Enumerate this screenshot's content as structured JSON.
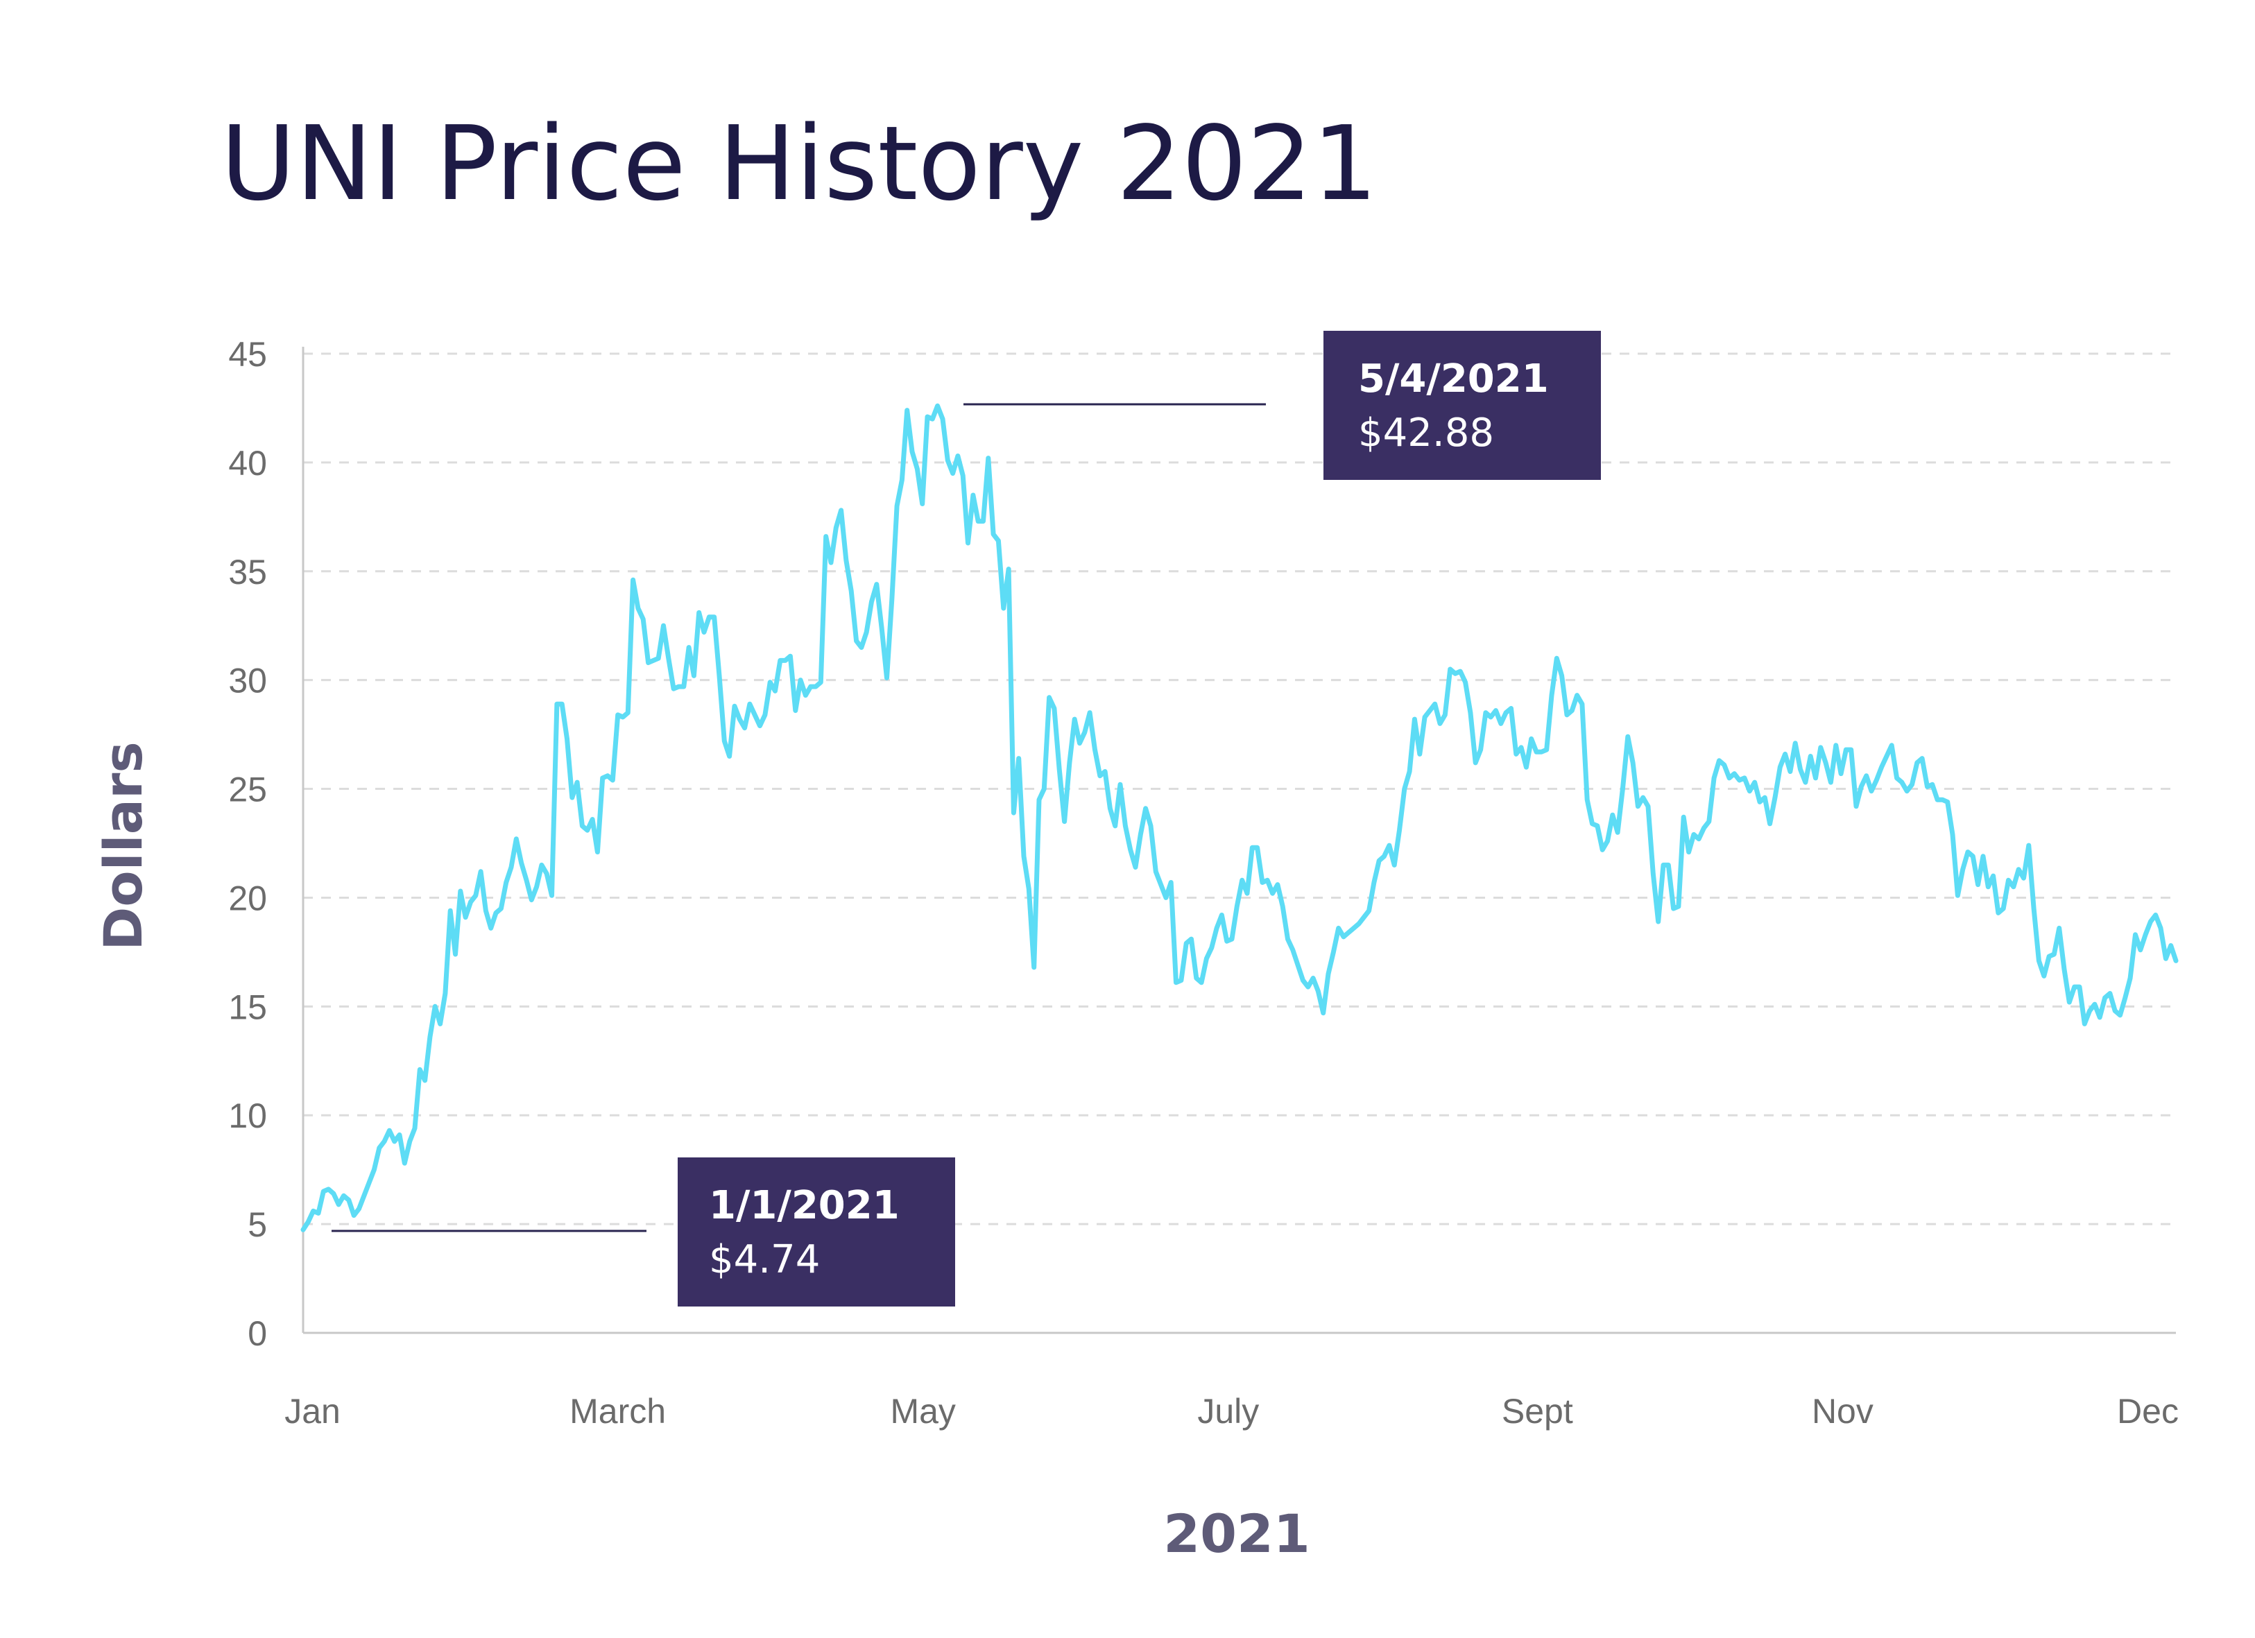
{
  "chart_data": {
    "type": "line",
    "title": "UNI Price History 2021",
    "xlabel": "2021",
    "ylabel": "Dollars",
    "ylim": [
      0,
      45
    ],
    "yticks": [
      0,
      5,
      10,
      15,
      20,
      25,
      30,
      35,
      40,
      45
    ],
    "xticks": [
      "Jan",
      "March",
      "May",
      "July",
      "Sept",
      "Nov",
      "Dec"
    ],
    "grid": true,
    "colors": {
      "line": "#5ddcf5",
      "annotation_bg": "#3a2f63",
      "leader": "#2a2550",
      "grid": "#dcdcdc",
      "axis": "#c8c8c8"
    },
    "annotations": [
      {
        "date": "1/1/2021",
        "value": "$4.74"
      },
      {
        "date": "5/4/2021",
        "value": "$42.88"
      }
    ],
    "series": [
      {
        "values": [
          4.74,
          5.1,
          5.6,
          5.5,
          6.5,
          6.6,
          6.4,
          5.9,
          6.3,
          6.1,
          5.4,
          5.7,
          6.3,
          6.9,
          7.5,
          8.5,
          8.8,
          9.3,
          8.8,
          9.1,
          7.8,
          8.8,
          9.4,
          12.1,
          11.6,
          13.6,
          15.0,
          14.2,
          15.6,
          19.4,
          17.4,
          20.3,
          19.1,
          19.8,
          20.1,
          21.2,
          19.4,
          18.6,
          19.3,
          19.5,
          20.7,
          21.4,
          22.7,
          21.6,
          20.8,
          19.9,
          20.5,
          21.5,
          21.1,
          20.1,
          28.9,
          28.9,
          27.3,
          24.6,
          25.3,
          23.3,
          23.1,
          23.6,
          22.1,
          25.5,
          25.6,
          25.4,
          28.4,
          28.3,
          28.5,
          34.6,
          33.3,
          32.8,
          30.8,
          30.9,
          31.0,
          32.5,
          31.0,
          29.6,
          29.7,
          29.7,
          31.5,
          30.2,
          33.1,
          32.2,
          32.9,
          32.9,
          30.2,
          27.2,
          26.5,
          28.8,
          28.2,
          27.8,
          28.9,
          28.4,
          27.9,
          28.4,
          29.9,
          29.5,
          30.9,
          30.9,
          31.1,
          28.6,
          30.0,
          29.3,
          29.7,
          29.7,
          29.9,
          36.6,
          35.4,
          37.0,
          37.8,
          35.5,
          34.1,
          31.8,
          31.5,
          32.2,
          33.6,
          34.4,
          32.4,
          30.1,
          33.7,
          38.0,
          39.2,
          42.4,
          40.5,
          39.7,
          38.1,
          42.1,
          42.0,
          42.6,
          42.0,
          40.1,
          39.5,
          40.3,
          39.4,
          36.3,
          38.5,
          37.3,
          37.3,
          40.2,
          36.7,
          36.4,
          33.3,
          35.1,
          23.9,
          26.4,
          21.9,
          20.4,
          16.8,
          24.5,
          25.0,
          29.2,
          28.7,
          25.9,
          23.5,
          26.2,
          28.2,
          27.1,
          27.6,
          28.5,
          26.8,
          25.6,
          25.8,
          24.1,
          23.3,
          25.2,
          23.3,
          22.2,
          21.4,
          22.9,
          24.1,
          23.3,
          21.2,
          20.6,
          20.0,
          20.7,
          16.1,
          16.2,
          17.9,
          18.1,
          16.3,
          16.1,
          17.2,
          17.7,
          18.6,
          19.2,
          18.0,
          18.1,
          19.6,
          20.8,
          20.2,
          22.3,
          22.3,
          20.7,
          20.8,
          20.2,
          20.6,
          19.6,
          18.1,
          17.6,
          16.9,
          16.2,
          15.9,
          16.3,
          15.7,
          14.7,
          16.5,
          17.5,
          18.6,
          18.2,
          18.4,
          18.6,
          18.8,
          19.1,
          19.4,
          20.7,
          21.7,
          21.9,
          22.4,
          21.5,
          23.1,
          25.0,
          25.8,
          28.2,
          26.6,
          28.3,
          28.6,
          28.9,
          28.0,
          28.4,
          30.5,
          30.3,
          30.4,
          29.9,
          28.5,
          26.2,
          26.8,
          28.5,
          28.3,
          28.6,
          28.0,
          28.5,
          28.7,
          26.6,
          26.9,
          26.0,
          27.3,
          26.7,
          26.7,
          26.8,
          29.3,
          31.0,
          30.2,
          28.4,
          28.6,
          29.3,
          28.9,
          24.5,
          23.4,
          23.3,
          22.2,
          22.6,
          23.8,
          23.0,
          25.0,
          27.4,
          26.2,
          24.2,
          24.6,
          24.2,
          21.1,
          18.9,
          21.5,
          21.5,
          19.5,
          19.6,
          23.7,
          22.1,
          22.9,
          22.7,
          23.2,
          23.5,
          25.5,
          26.3,
          26.1,
          25.5,
          25.7,
          25.4,
          25.5,
          24.9,
          25.3,
          24.4,
          24.6,
          23.4,
          24.6,
          26.0,
          26.6,
          25.8,
          27.1,
          25.9,
          25.3,
          26.5,
          25.5,
          26.9,
          26.2,
          25.3,
          27.0,
          25.7,
          26.8,
          26.8,
          24.2,
          25.1,
          25.6,
          24.9,
          25.4,
          26.0,
          26.5,
          27.0,
          25.5,
          25.3,
          24.9,
          25.2,
          26.2,
          26.4,
          25.1,
          25.2,
          24.5,
          24.5,
          24.4,
          22.9,
          20.1,
          21.3,
          22.1,
          21.9,
          20.6,
          21.9,
          20.5,
          21.0,
          19.3,
          19.5,
          20.8,
          20.5,
          21.3,
          20.9,
          22.4,
          19.5,
          17.1,
          16.4,
          17.3,
          17.4,
          18.6,
          16.7,
          15.2,
          15.9,
          15.9,
          14.2,
          14.8,
          15.1,
          14.5,
          15.4,
          15.6,
          14.8,
          14.6,
          15.4,
          16.3,
          18.3,
          17.6,
          18.3,
          18.9,
          19.2,
          18.6,
          17.2,
          17.8,
          17.1
        ]
      }
    ]
  }
}
